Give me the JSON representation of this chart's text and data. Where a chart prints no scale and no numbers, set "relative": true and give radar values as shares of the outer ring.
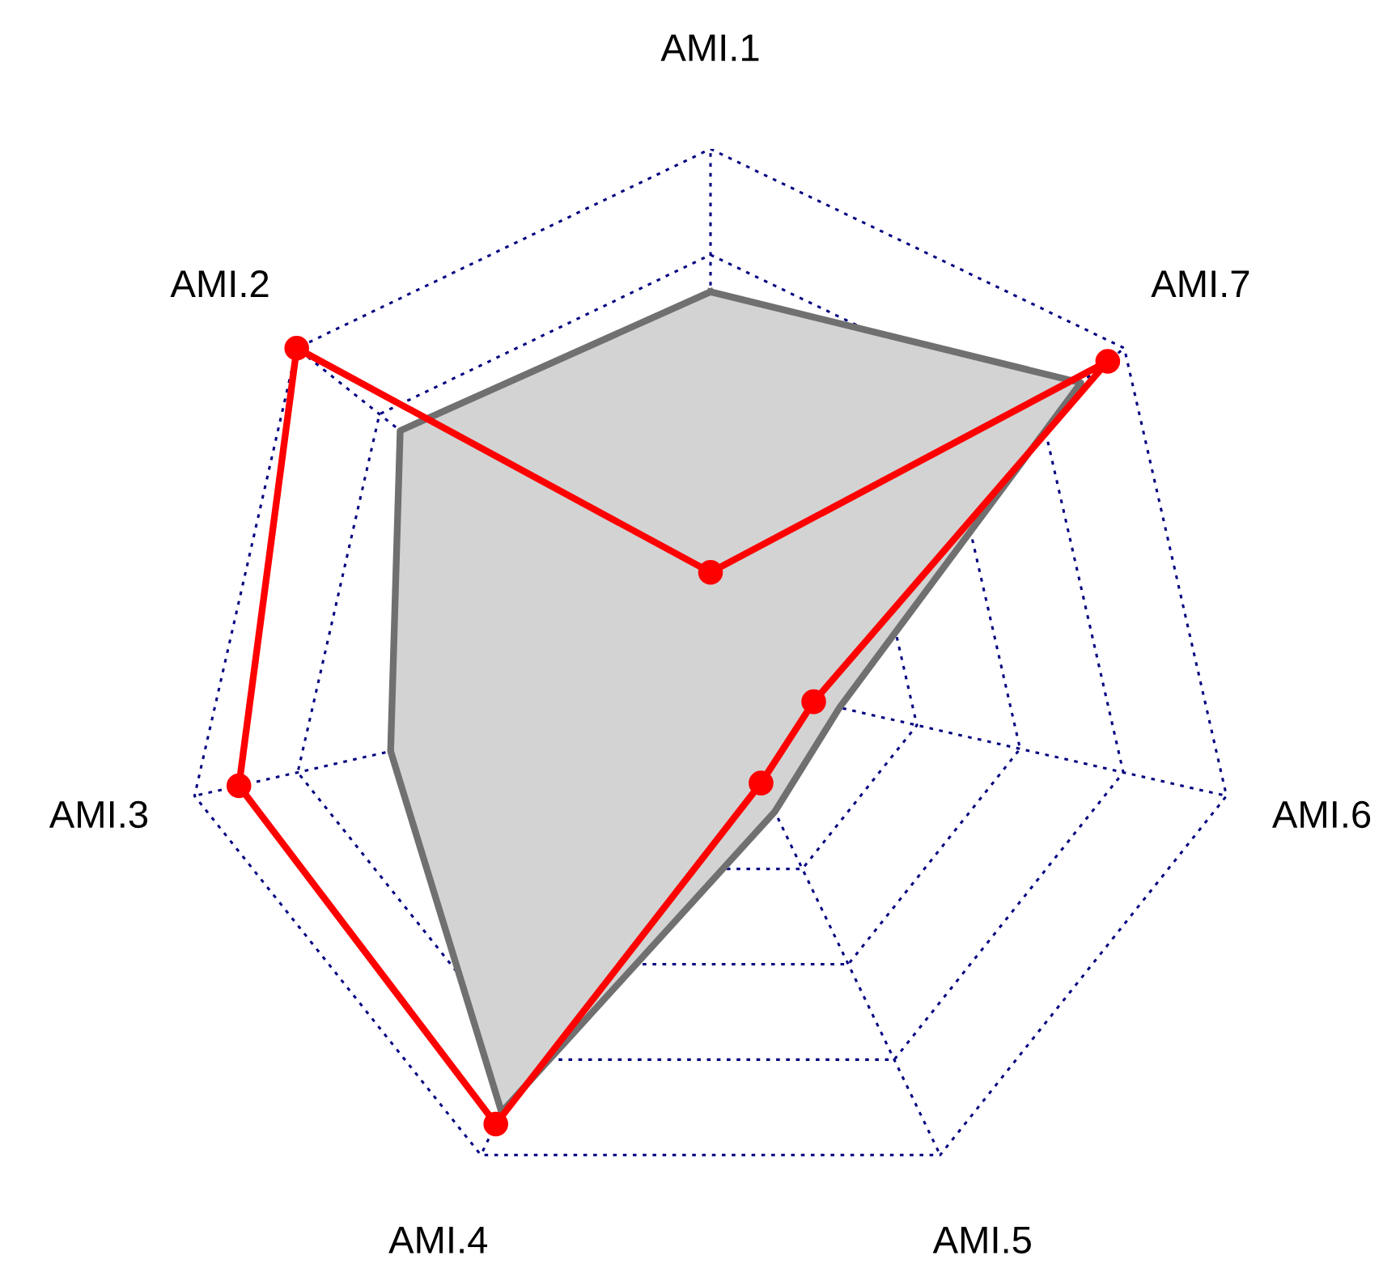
{
  "chart_data": {
    "type": "radar",
    "relative": true,
    "grid": true,
    "categories": [
      "AMI.1",
      "AMI.7",
      "AMI.6",
      "AMI.5",
      "AMI.4",
      "AMI.3",
      "AMI.2"
    ],
    "series": [
      {
        "color": "#707070",
        "marker": "none",
        "values": [
          0.73,
          0.895,
          0.25,
          0.28,
          0.91,
          0.62,
          0.75
        ]
      },
      {
        "color": "#ff0000",
        "marker": "circle",
        "values": [
          0.2,
          0.96,
          0.2,
          0.22,
          0.935,
          0.914,
          1.0
        ]
      }
    ]
  }
}
